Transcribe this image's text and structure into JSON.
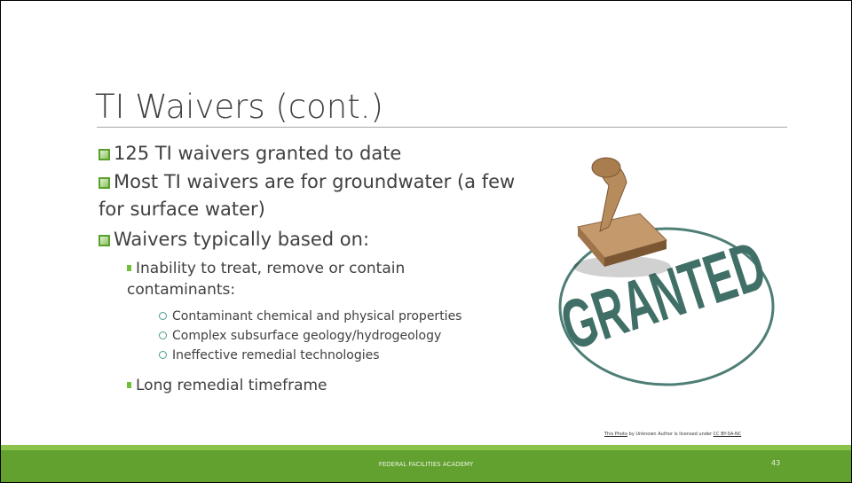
{
  "slide": {
    "title": "TI Waivers (cont.)",
    "bullets": [
      {
        "text": "125 TI waivers granted to date"
      },
      {
        "text": "Most TI waivers are for groundwater (a few for surface water)"
      },
      {
        "text": "Waivers typically based on:",
        "sub_bullets": [
          {
            "text": "Inability to treat, remove or contain contaminants:",
            "sub_bullets": [
              {
                "text": "Contaminant chemical and physical properties"
              },
              {
                "text": "Complex subsurface geology/hydrogeology"
              },
              {
                "text": "Ineffective remedial technologies"
              }
            ]
          },
          {
            "text": "Long remedial timeframe"
          }
        ]
      }
    ]
  },
  "image": {
    "stamp_text": "GRANTED",
    "credit": {
      "link": "This Photo",
      "middle": "by Unknown Author is licensed under",
      "license": "CC BY-SA-NC"
    }
  },
  "footer": {
    "text": "FEDERAL FACILITIES ACADEMY",
    "page_number": 43
  }
}
